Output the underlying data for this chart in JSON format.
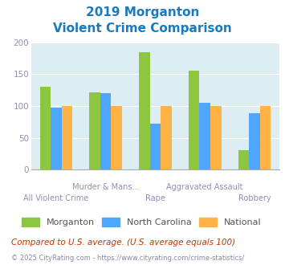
{
  "title_line1": "2019 Morganton",
  "title_line2": "Violent Crime Comparison",
  "categories_top": [
    "",
    "Murder & Mans...",
    "",
    "Aggravated Assault",
    ""
  ],
  "categories_bot": [
    "All Violent Crime",
    "",
    "Rape",
    "",
    "Robbery"
  ],
  "series": {
    "Morganton": [
      130,
      122,
      184,
      155,
      30
    ],
    "North Carolina": [
      98,
      120,
      72,
      105,
      89
    ],
    "National": [
      100,
      100,
      100,
      100,
      100
    ]
  },
  "colors": {
    "Morganton": "#8dc63f",
    "North Carolina": "#4da6ff",
    "National": "#ffb347"
  },
  "ylim": [
    0,
    200
  ],
  "yticks": [
    0,
    50,
    100,
    150,
    200
  ],
  "fig_bg": "#ffffff",
  "plot_bg": "#ddeef2",
  "title_color": "#1a7abf",
  "axis_label_color": "#9090b0",
  "footnote1": "Compared to U.S. average. (U.S. average equals 100)",
  "footnote2": "© 2025 CityRating.com - https://www.cityrating.com/crime-statistics/",
  "footnote1_color": "#cc3300",
  "footnote2_color": "#8888aa",
  "legend_text_color": "#555555"
}
